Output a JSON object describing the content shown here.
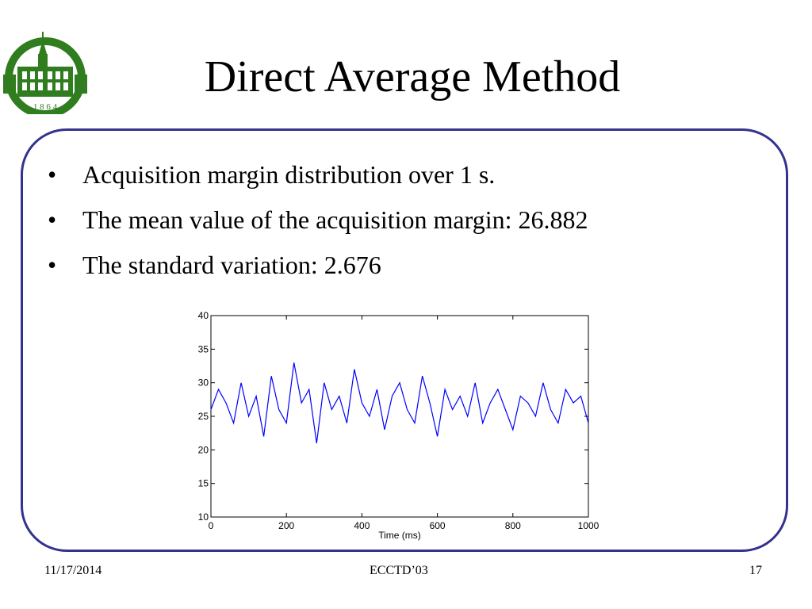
{
  "slide": {
    "title": "Direct Average Method",
    "logo": {
      "icon": "university-building-seal-icon",
      "year_text": "1 8 6 4",
      "color": "#2f7d1f"
    },
    "bullets": [
      "Acquisition margin distribution over 1 s.",
      "The mean value of the acquisition margin: 26.882",
      "The standard variation: 2.676"
    ],
    "frame_color": "#33338f"
  },
  "footer": {
    "date": "11/17/2014",
    "center": "ECCTD’03",
    "page": "17"
  },
  "chart_data": {
    "type": "line",
    "xlabel": "Time (ms)",
    "ylabel": "",
    "xlim": [
      0,
      1000
    ],
    "ylim": [
      10,
      40
    ],
    "xticks": [
      0,
      200,
      400,
      600,
      800,
      1000
    ],
    "yticks": [
      10,
      15,
      20,
      25,
      30,
      35,
      40
    ],
    "grid": false,
    "line_color": "#0000ff",
    "series": [
      {
        "x": [
          0,
          20,
          40,
          60,
          80,
          100,
          120,
          140,
          160,
          180,
          200,
          220,
          240,
          260,
          280,
          300,
          320,
          340,
          360,
          380,
          400,
          420,
          440,
          460,
          480,
          500,
          520,
          540,
          560,
          580,
          600,
          620,
          640,
          660,
          680,
          700,
          720,
          740,
          760,
          780,
          800,
          820,
          840,
          860,
          880,
          900,
          920,
          940,
          960,
          980,
          1000
        ],
        "y": [
          26,
          29,
          27,
          24,
          30,
          25,
          28,
          22,
          31,
          26,
          24,
          33,
          27,
          29,
          21,
          30,
          26,
          28,
          24,
          32,
          27,
          25,
          29,
          23,
          28,
          30,
          26,
          24,
          31,
          27,
          22,
          29,
          26,
          28,
          25,
          30,
          24,
          27,
          29,
          26,
          23,
          28,
          27,
          25,
          30,
          26,
          24,
          29,
          27,
          28,
          24
        ]
      }
    ]
  }
}
